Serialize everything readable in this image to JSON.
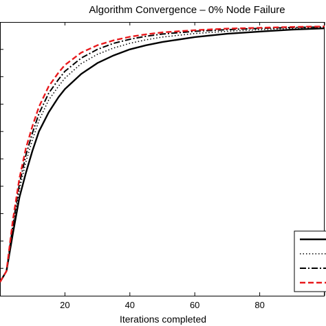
{
  "chart_data": {
    "type": "line",
    "title": "Algorithm Convergence – 0% Node Failure",
    "xlabel": "Iterations completed",
    "ylabel": "",
    "xlim": [
      0,
      100
    ],
    "ylim": [
      0,
      1
    ],
    "xticks": [
      20,
      40,
      60,
      80
    ],
    "grid": false,
    "legend_position": "bottom-right",
    "series": [
      {
        "style": "solid",
        "color": "#000000",
        "x": [
          0,
          2,
          4,
          6,
          8,
          10,
          12,
          15,
          18,
          20,
          25,
          30,
          35,
          40,
          45,
          50,
          60,
          70,
          80,
          90,
          100
        ],
        "y": [
          0.05,
          0.09,
          0.23,
          0.36,
          0.45,
          0.53,
          0.6,
          0.67,
          0.725,
          0.755,
          0.81,
          0.85,
          0.878,
          0.9,
          0.915,
          0.927,
          0.945,
          0.957,
          0.965,
          0.972,
          0.977
        ]
      },
      {
        "style": "dotted",
        "color": "#000000",
        "x": [
          0,
          2,
          4,
          6,
          8,
          10,
          12,
          15,
          18,
          20,
          25,
          30,
          35,
          40,
          45,
          50,
          60,
          70,
          80,
          90,
          100
        ],
        "y": [
          0.05,
          0.09,
          0.25,
          0.39,
          0.49,
          0.57,
          0.64,
          0.715,
          0.765,
          0.795,
          0.848,
          0.882,
          0.905,
          0.922,
          0.935,
          0.945,
          0.958,
          0.966,
          0.972,
          0.977,
          0.98
        ]
      },
      {
        "style": "dashdot",
        "color": "#000000",
        "x": [
          0,
          2,
          4,
          6,
          8,
          10,
          12,
          15,
          18,
          20,
          25,
          30,
          35,
          40,
          45,
          50,
          60,
          70,
          80,
          90,
          100
        ],
        "y": [
          0.05,
          0.09,
          0.26,
          0.41,
          0.515,
          0.595,
          0.665,
          0.74,
          0.79,
          0.82,
          0.868,
          0.9,
          0.922,
          0.937,
          0.948,
          0.956,
          0.966,
          0.972,
          0.977,
          0.98,
          0.982
        ]
      },
      {
        "style": "dashed",
        "color": "#e8191c",
        "x": [
          0,
          2,
          4,
          6,
          8,
          10,
          12,
          15,
          18,
          20,
          25,
          30,
          35,
          40,
          45,
          50,
          60,
          70,
          80,
          90,
          100
        ],
        "y": [
          0.05,
          0.09,
          0.28,
          0.43,
          0.54,
          0.62,
          0.69,
          0.765,
          0.815,
          0.843,
          0.888,
          0.915,
          0.933,
          0.946,
          0.955,
          0.962,
          0.97,
          0.976,
          0.979,
          0.982,
          0.984
        ]
      }
    ]
  }
}
